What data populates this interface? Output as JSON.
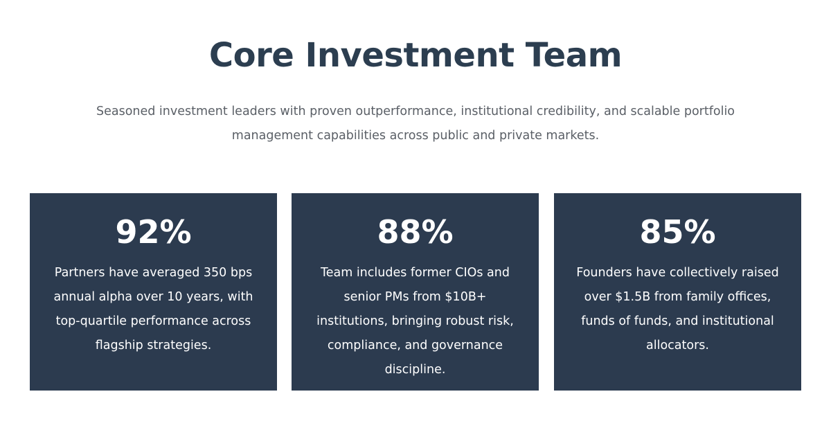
{
  "header": {
    "title": "Core Investment Team",
    "subtitle": "Seasoned investment leaders with proven outperformance, institutional credibility, and scalable portfolio management capabilities across public and private markets."
  },
  "cards": [
    {
      "stat": "92%",
      "description": "Partners have averaged 350 bps annual alpha over 10 years, with top-quartile performance across flagship strategies."
    },
    {
      "stat": "88%",
      "description": "Team includes former CIOs and senior PMs from $10B+ institutions, bringing robust risk, compliance, and governance discipline."
    },
    {
      "stat": "85%",
      "description": "Founders have collectively raised over $1.5B from family offices, funds of funds, and institutional allocators."
    }
  ],
  "colors": {
    "card_background": "#2c3b4f",
    "title": "#2c3e50"
  }
}
